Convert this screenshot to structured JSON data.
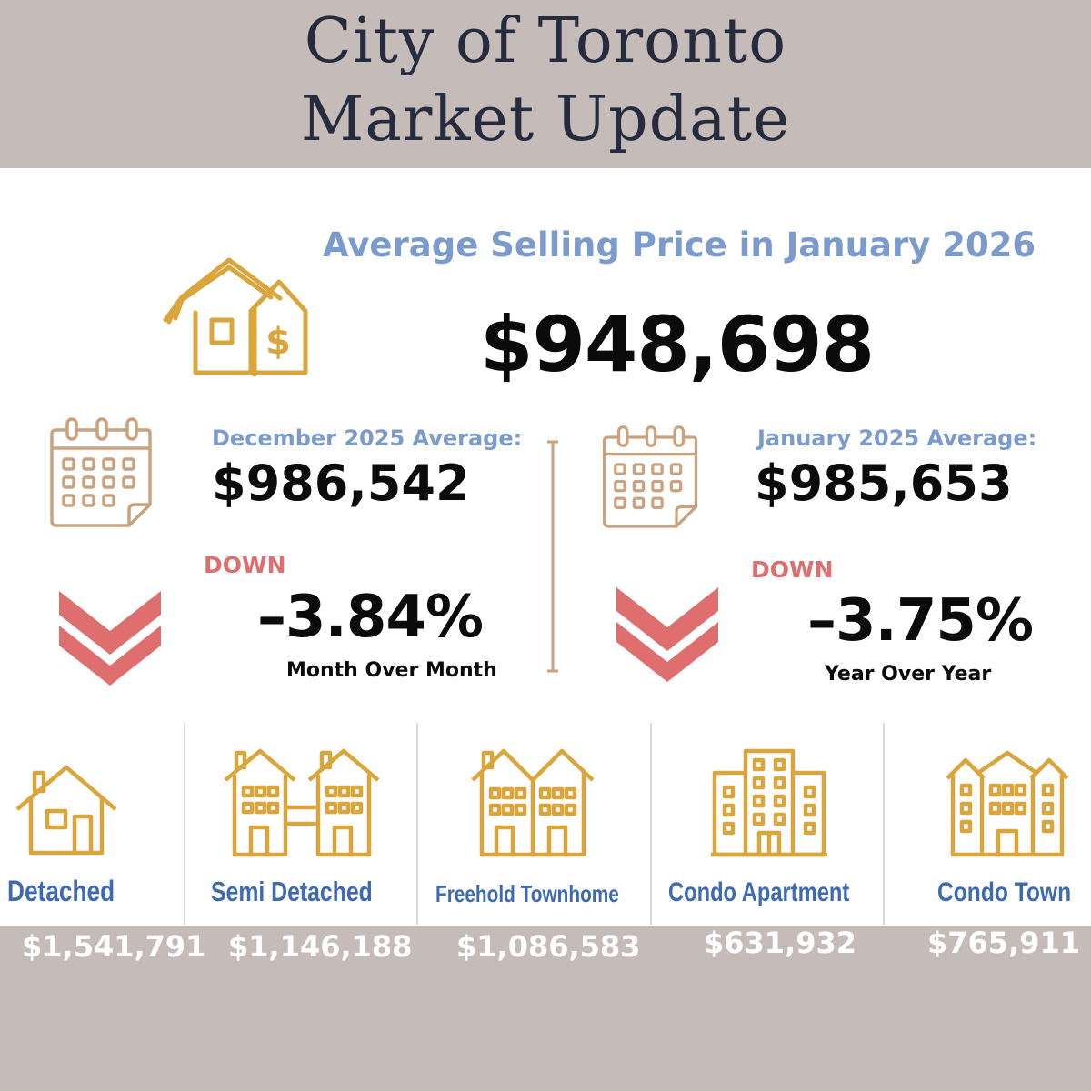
{
  "header": {
    "title_line1": "City of Toronto",
    "title_line2": "Market Update"
  },
  "average": {
    "title": "Average Selling Price in January 2026",
    "price": "$948,698"
  },
  "month_comparison": {
    "label": "December  2025 Average:",
    "price": "$986,542",
    "direction": "DOWN",
    "change": "–3.84%",
    "period": "Month Over Month"
  },
  "year_comparison": {
    "label": "January 2025 Average:",
    "price": "$985,653",
    "direction": "DOWN",
    "change": "–3.75%",
    "period": "Year Over Year"
  },
  "categories": [
    {
      "label": "Detached",
      "price": "$1,541,791",
      "icon": "detached-house-icon"
    },
    {
      "label": "Semi Detached",
      "price": "$1,146,188",
      "icon": "semi-detached-icon"
    },
    {
      "label": "Freehold Townhome",
      "price": "$1,086,583",
      "icon": "townhome-icon"
    },
    {
      "label": "Condo Apartment",
      "price": "$631,932",
      "icon": "condo-apartment-icon"
    },
    {
      "label": "Condo Town",
      "price": "$765,911",
      "icon": "condo-town-icon"
    }
  ],
  "colors": {
    "background": "#c5bcb9",
    "title": "#262b3d",
    "accent_blue": "#7b9bcc",
    "category_blue": "#3e6ab1",
    "icon_gold": "#daa53a",
    "calendar_tan": "#c9a27e",
    "down_red": "#df6e6e"
  }
}
